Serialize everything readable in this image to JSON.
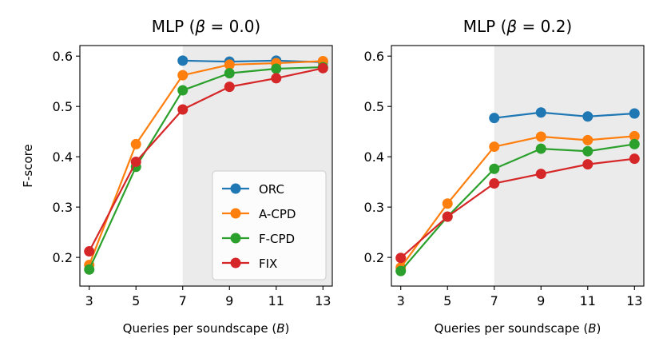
{
  "chart_data": [
    {
      "type": "line",
      "title_prefix": "MLP (",
      "title_symbol": "β",
      "title_suffix": " = 0.0)",
      "xlabel_prefix": "Queries per soundscape (",
      "xlabel_symbol": "B",
      "xlabel_suffix": ")",
      "ylabel": "F-score",
      "x": [
        3,
        5,
        7,
        9,
        11,
        13
      ],
      "xticks": [
        "3",
        "5",
        "7",
        "9",
        "11",
        "13"
      ],
      "yticks": [
        "0.2",
        "0.3",
        "0.4",
        "0.5",
        "0.6"
      ],
      "xlim": [
        2.6,
        13.4
      ],
      "ylim": [
        0.143,
        0.621
      ],
      "shaded_region": [
        7,
        13.4
      ],
      "legend": "lower-right",
      "series": [
        {
          "name": "ORC",
          "color": "#1f77b4",
          "x": [
            7,
            9,
            11,
            13
          ],
          "values": [
            0.591,
            0.589,
            0.591,
            0.588
          ]
        },
        {
          "name": "A-CPD",
          "color": "#ff7f0e",
          "x": [
            3,
            5,
            7,
            9,
            11,
            13
          ],
          "values": [
            0.185,
            0.425,
            0.562,
            0.583,
            0.586,
            0.59
          ]
        },
        {
          "name": "F-CPD",
          "color": "#2ca02c",
          "x": [
            3,
            5,
            7,
            9,
            11,
            13
          ],
          "values": [
            0.176,
            0.38,
            0.532,
            0.566,
            0.575,
            0.578
          ]
        },
        {
          "name": "FIX",
          "color": "#d62728",
          "x": [
            3,
            5,
            7,
            9,
            11,
            13
          ],
          "values": [
            0.212,
            0.39,
            0.494,
            0.539,
            0.556,
            0.576
          ]
        }
      ]
    },
    {
      "type": "line",
      "title_prefix": "MLP (",
      "title_symbol": "β",
      "title_suffix": " = 0.2)",
      "xlabel_prefix": "Queries per soundscape (",
      "xlabel_symbol": "B",
      "xlabel_suffix": ")",
      "ylabel": "",
      "x": [
        3,
        5,
        7,
        9,
        11,
        13
      ],
      "xticks": [
        "3",
        "5",
        "7",
        "9",
        "11",
        "13"
      ],
      "yticks": [
        "0.2",
        "0.3",
        "0.4",
        "0.5",
        "0.6"
      ],
      "xlim": [
        2.6,
        13.4
      ],
      "ylim": [
        0.143,
        0.621
      ],
      "shaded_region": [
        7,
        13.4
      ],
      "legend": "",
      "series": [
        {
          "name": "ORC",
          "color": "#1f77b4",
          "x": [
            7,
            9,
            11,
            13
          ],
          "values": [
            0.477,
            0.488,
            0.48,
            0.486
          ]
        },
        {
          "name": "A-CPD",
          "color": "#ff7f0e",
          "x": [
            3,
            5,
            7,
            9,
            11,
            13
          ],
          "values": [
            0.18,
            0.307,
            0.42,
            0.44,
            0.433,
            0.441
          ]
        },
        {
          "name": "F-CPD",
          "color": "#2ca02c",
          "x": [
            3,
            5,
            7,
            9,
            11,
            13
          ],
          "values": [
            0.173,
            0.281,
            0.376,
            0.416,
            0.411,
            0.425
          ]
        },
        {
          "name": "FIX",
          "color": "#d62728",
          "x": [
            3,
            5,
            7,
            9,
            11,
            13
          ],
          "values": [
            0.199,
            0.281,
            0.347,
            0.366,
            0.385,
            0.396
          ]
        }
      ]
    }
  ]
}
